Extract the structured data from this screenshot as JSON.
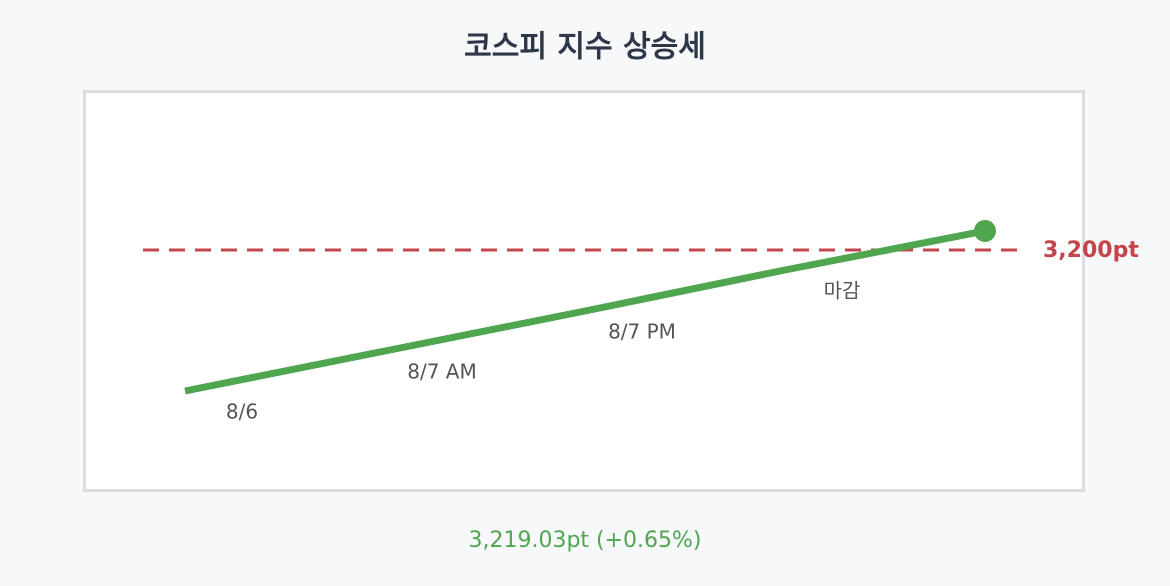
{
  "chart_data": {
    "type": "line",
    "title": "코스피 지수 상승세",
    "categories": [
      "8/6",
      "8/7 AM",
      "8/7 PM",
      "마감",
      null
    ],
    "series": [
      {
        "name": "KOSPI",
        "color": "#4fa64f",
        "values": [
          3059,
          3099,
          3139,
          3180,
          3219.03
        ]
      }
    ],
    "ylim": [
      2960,
      3358
    ],
    "reference": {
      "value": 3200,
      "label": "3,200pt",
      "color": "#c3454b"
    },
    "summary": "3,219.03pt (+0.65%)"
  }
}
